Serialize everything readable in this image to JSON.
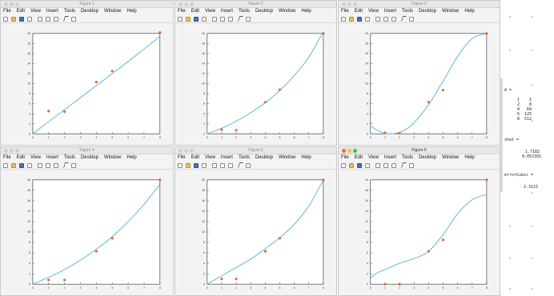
{
  "menu": [
    "File",
    "Edit",
    "View",
    "Insert",
    "Tools",
    "Desktop",
    "Window",
    "Help"
  ],
  "figures": [
    {
      "title": "Figure 1",
      "active": false,
      "chart_data": {
        "type": "line",
        "xlim": [
          0,
          8
        ],
        "ylim": [
          0,
          20
        ],
        "xticks": [
          "0",
          "1",
          "2",
          "3",
          "4",
          "5",
          "6",
          "7",
          "8"
        ],
        "yticks": [
          "0",
          "2",
          "4",
          "6",
          "8",
          "10",
          "12",
          "14",
          "16",
          "18",
          "20"
        ],
        "points": {
          "x": [
            1,
            2,
            4,
            5,
            8
          ],
          "y": [
            4.5,
            4.4,
            10.3,
            12.5,
            20.2
          ]
        },
        "curve": {
          "x": [
            0,
            1,
            2,
            3,
            4,
            5,
            6,
            7,
            8
          ],
          "y": [
            0,
            2.4,
            4.8,
            7.2,
            9.6,
            12,
            14.4,
            16.9,
            19.4
          ]
        }
      }
    },
    {
      "title": "Figure 2",
      "active": false,
      "chart_data": {
        "type": "line",
        "xlim": [
          0,
          8
        ],
        "ylim": [
          0,
          20
        ],
        "xticks": [
          "0",
          "1",
          "2",
          "3",
          "4",
          "5",
          "6",
          "7",
          "8"
        ],
        "yticks": [
          "0",
          "2",
          "4",
          "6",
          "8",
          "10",
          "12",
          "14",
          "16",
          "18",
          "20"
        ],
        "points": {
          "x": [
            1,
            2,
            4,
            5,
            8
          ],
          "y": [
            0.8,
            0.7,
            6.3,
            8.8,
            20
          ]
        },
        "curve": {
          "x": [
            0,
            1,
            2,
            3,
            4,
            5,
            6,
            7,
            8
          ],
          "y": [
            0,
            1.1,
            2.5,
            4.2,
            6.2,
            8.6,
            11.6,
            15.3,
            20.4
          ]
        }
      }
    },
    {
      "title": "Figure 3",
      "active": false,
      "chart_data": {
        "type": "line",
        "xlim": [
          0,
          8
        ],
        "ylim": [
          0,
          20
        ],
        "xticks": [
          "0",
          "1",
          "2",
          "3",
          "4",
          "5",
          "6",
          "7",
          "8"
        ],
        "yticks": [
          "0",
          "2",
          "4",
          "6",
          "8",
          "10",
          "12",
          "14",
          "16",
          "18",
          "20"
        ],
        "points": {
          "x": [
            1,
            2,
            4,
            5,
            8
          ],
          "y": [
            0.2,
            0.1,
            6.3,
            8.7,
            20
          ]
        },
        "curve": {
          "x": [
            0,
            0.5,
            1,
            1.5,
            2,
            2.5,
            3,
            4,
            5,
            6,
            7,
            8
          ],
          "y": [
            1.6,
            0.6,
            0.1,
            0,
            0.3,
            1.0,
            2.2,
            5.8,
            10.5,
            15.4,
            19.0,
            20
          ]
        }
      }
    },
    {
      "title": "Figure 4",
      "active": false,
      "chart_data": {
        "type": "line",
        "xlim": [
          0,
          8
        ],
        "ylim": [
          0,
          20
        ],
        "xticks": [
          "0",
          "1",
          "2",
          "3",
          "4",
          "5",
          "6",
          "7",
          "8"
        ],
        "yticks": [
          "0",
          "2",
          "4",
          "6",
          "8",
          "10",
          "12",
          "14",
          "16",
          "18",
          "20"
        ],
        "points": {
          "x": [
            1,
            2,
            4,
            5,
            8
          ],
          "y": [
            0.8,
            0.8,
            6.3,
            8.8,
            20
          ]
        },
        "curve": {
          "x": [
            0,
            1,
            2,
            3,
            4,
            5,
            6,
            7,
            8
          ],
          "y": [
            0,
            1.3,
            2.8,
            4.6,
            6.7,
            9.1,
            12,
            15.3,
            19.2
          ]
        }
      }
    },
    {
      "title": "Figure 5",
      "active": false,
      "chart_data": {
        "type": "line",
        "xlim": [
          0,
          8
        ],
        "ylim": [
          0,
          20
        ],
        "xticks": [
          "0",
          "1",
          "2",
          "3",
          "4",
          "5",
          "6",
          "7",
          "8"
        ],
        "yticks": [
          "0",
          "2",
          "4",
          "6",
          "8",
          "10",
          "12",
          "14",
          "16",
          "18",
          "20"
        ],
        "points": {
          "x": [
            1,
            2,
            4,
            5,
            8
          ],
          "y": [
            1.0,
            1.0,
            6.3,
            8.8,
            20
          ]
        },
        "curve": {
          "x": [
            0,
            1,
            2,
            3,
            4,
            5,
            6,
            7,
            8
          ],
          "y": [
            0,
            1.6,
            3.2,
            4.8,
            6.8,
            8.9,
            11.5,
            15,
            20
          ]
        }
      }
    },
    {
      "title": "Figure 6",
      "active": true,
      "chart_data": {
        "type": "line",
        "xlim": [
          0,
          8
        ],
        "ylim": [
          0,
          20
        ],
        "xticks": [
          "0",
          "1",
          "2",
          "3",
          "4",
          "5",
          "6",
          "7",
          "8"
        ],
        "yticks": [
          "0",
          "2",
          "4",
          "6",
          "8",
          "10",
          "12",
          "14",
          "16",
          "18",
          "20"
        ],
        "points": {
          "x": [
            1,
            2,
            4,
            5,
            8
          ],
          "y": [
            0,
            0,
            6.3,
            8.5,
            20
          ]
        },
        "curve": {
          "x": [
            0,
            0.5,
            1,
            2,
            3,
            4,
            5,
            6,
            7,
            8
          ],
          "y": [
            1.2,
            2.2,
            2.8,
            4.0,
            4.9,
            6.3,
            9.5,
            13.5,
            16.2,
            17.2
          ]
        }
      }
    }
  ],
  "console": {
    "a_label": "A =",
    "a_rows": [
      "1    1",
      "2    8",
      "4   64",
      "5  125",
      "8  512"
    ],
    "xhat_label": "xhat =",
    "xhat_values": [
      "1.7182",
      "0.052391"
    ],
    "error_label": "errorCubic =",
    "error_value": "2.3115"
  },
  "colors": {
    "curve": "#5fb6dc",
    "points": "#e8632a",
    "axes_bg": "#ffffff"
  }
}
